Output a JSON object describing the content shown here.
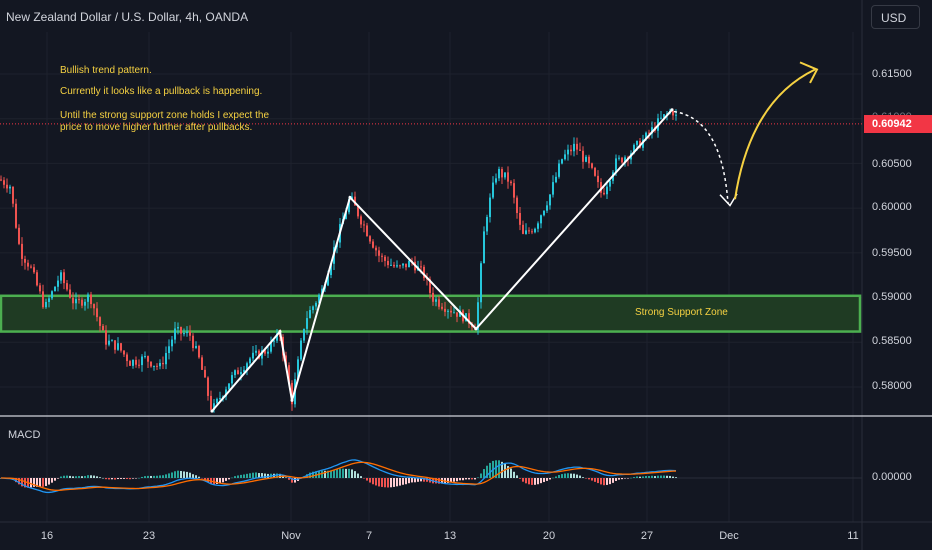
{
  "header": {
    "symbol_title": "New Zealand Dollar / U.S. Dollar, 4h, OANDA",
    "currency_button": "USD"
  },
  "notes": {
    "line1": "Bullish trend pattern.",
    "line2": "Currently it looks like a pullback is happening.",
    "line3a": "Until the strong support zone holds I expect the",
    "line3b": "price to move higher further after pullbacks."
  },
  "zone": {
    "label": "Strong Support Zone",
    "color": "#4caf50"
  },
  "indicator": {
    "label": "MACD"
  },
  "price_axis": {
    "labels": [
      "0.61500",
      "0.61000",
      "0.60500",
      "0.60000",
      "0.59500",
      "0.59000",
      "0.58500",
      "0.58000"
    ],
    "current_price": "0.60942",
    "current_color": "#f23645"
  },
  "macd_axis": {
    "labels": [
      "0.00000"
    ]
  },
  "time_axis": {
    "labels": [
      "16",
      "23",
      "Nov",
      "7",
      "13",
      "20",
      "27",
      "Dec",
      "11"
    ]
  },
  "colors": {
    "up": "#26c6da",
    "down": "#ef5350",
    "annotation": "#f5d142",
    "drawing": "#ffffff"
  },
  "chart_data": {
    "type": "candlestick",
    "title": "New Zealand Dollar / U.S. Dollar, 4h, OANDA",
    "ylim": [
      0.5755,
      0.6195
    ],
    "current_price": 0.60942,
    "support_zone": [
      0.5862,
      0.5902
    ],
    "x": [
      "16",
      "23",
      "Nov",
      "7",
      "13",
      "20",
      "27",
      "Dec",
      "11"
    ],
    "price_path": [
      [
        0,
        0.6032
      ],
      [
        10,
        0.6025
      ],
      [
        20,
        0.5952
      ],
      [
        30,
        0.5935
      ],
      [
        45,
        0.5888
      ],
      [
        60,
        0.5925
      ],
      [
        75,
        0.5892
      ],
      [
        90,
        0.5902
      ],
      [
        105,
        0.5852
      ],
      [
        118,
        0.5845
      ],
      [
        130,
        0.5828
      ],
      [
        145,
        0.5832
      ],
      [
        160,
        0.5822
      ],
      [
        175,
        0.5862
      ],
      [
        190,
        0.5858
      ],
      [
        200,
        0.5828
      ],
      [
        212,
        0.5773
      ],
      [
        230,
        0.5808
      ],
      [
        250,
        0.5832
      ],
      [
        265,
        0.584
      ],
      [
        280,
        0.5858
      ],
      [
        292,
        0.5785
      ],
      [
        305,
        0.5875
      ],
      [
        322,
        0.5908
      ],
      [
        336,
        0.5962
      ],
      [
        350,
        0.6012
      ],
      [
        365,
        0.5978
      ],
      [
        380,
        0.5945
      ],
      [
        398,
        0.5932
      ],
      [
        412,
        0.594
      ],
      [
        424,
        0.5925
      ],
      [
        432,
        0.59
      ],
      [
        445,
        0.589
      ],
      [
        462,
        0.588
      ],
      [
        476,
        0.5868
      ],
      [
        485,
        0.5985
      ],
      [
        497,
        0.6042
      ],
      [
        510,
        0.603
      ],
      [
        522,
        0.5968
      ],
      [
        535,
        0.598
      ],
      [
        550,
        0.6015
      ],
      [
        562,
        0.6055
      ],
      [
        575,
        0.607
      ],
      [
        590,
        0.6045
      ],
      [
        602,
        0.6015
      ],
      [
        615,
        0.605
      ],
      [
        630,
        0.6062
      ],
      [
        645,
        0.6078
      ],
      [
        660,
        0.6098
      ],
      [
        672,
        0.611
      ],
      [
        680,
        0.6094
      ]
    ],
    "drawn_path": [
      [
        0.5775,
        0.5862
      ],
      [
        0.5862,
        0.5785
      ],
      [
        0.5785,
        0.6012
      ],
      [
        0.6012,
        0.5865
      ],
      [
        0.5865,
        0.611
      ]
    ],
    "macd": {
      "zero_line": 0.0,
      "y_ticks": [
        "0.00000"
      ]
    }
  }
}
